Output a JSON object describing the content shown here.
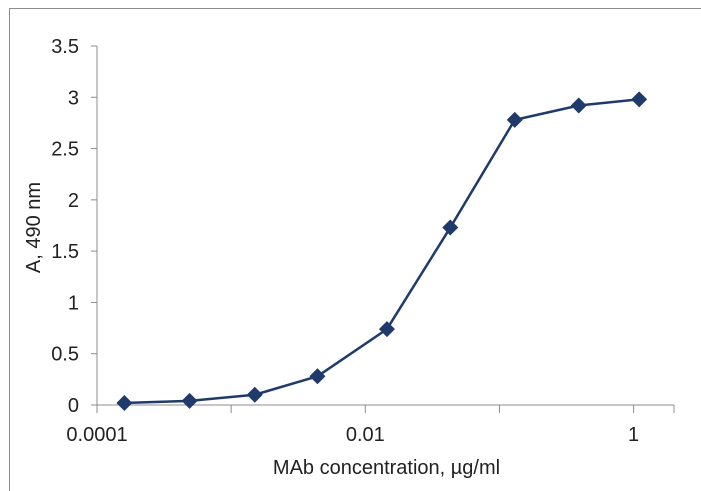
{
  "chart_data": {
    "type": "scatter",
    "title": "",
    "xlabel": "MAb concentration, µg/ml",
    "ylabel": "A, 490 nm",
    "x_scale": "log",
    "xlim": [
      0.0001,
      2
    ],
    "ylim": [
      0,
      3.5
    ],
    "grid": false,
    "legend": "none",
    "x_ticks": [
      {
        "value": 0.0001,
        "label": "0.0001"
      },
      {
        "value": 0.01,
        "label": "0.01"
      },
      {
        "value": 1,
        "label": "1"
      }
    ],
    "y_ticks": [
      {
        "value": 0,
        "label": "0"
      },
      {
        "value": 0.5,
        "label": "0.5"
      },
      {
        "value": 1,
        "label": "1"
      },
      {
        "value": 1.5,
        "label": "1.5"
      },
      {
        "value": 2,
        "label": "2"
      },
      {
        "value": 2.5,
        "label": "2.5"
      },
      {
        "value": 3,
        "label": "3"
      },
      {
        "value": 3.5,
        "label": "3.5"
      }
    ],
    "series": [
      {
        "marker": "diamond",
        "color": "#1f3a6b",
        "points": [
          {
            "x": 0.00016,
            "y": 0.02
          },
          {
            "x": 0.00049,
            "y": 0.04
          },
          {
            "x": 0.0015,
            "y": 0.1
          },
          {
            "x": 0.0044,
            "y": 0.28
          },
          {
            "x": 0.0145,
            "y": 0.74
          },
          {
            "x": 0.043,
            "y": 1.73
          },
          {
            "x": 0.13,
            "y": 2.78
          },
          {
            "x": 0.39,
            "y": 2.92
          },
          {
            "x": 1.1,
            "y": 2.98
          }
        ]
      }
    ]
  }
}
